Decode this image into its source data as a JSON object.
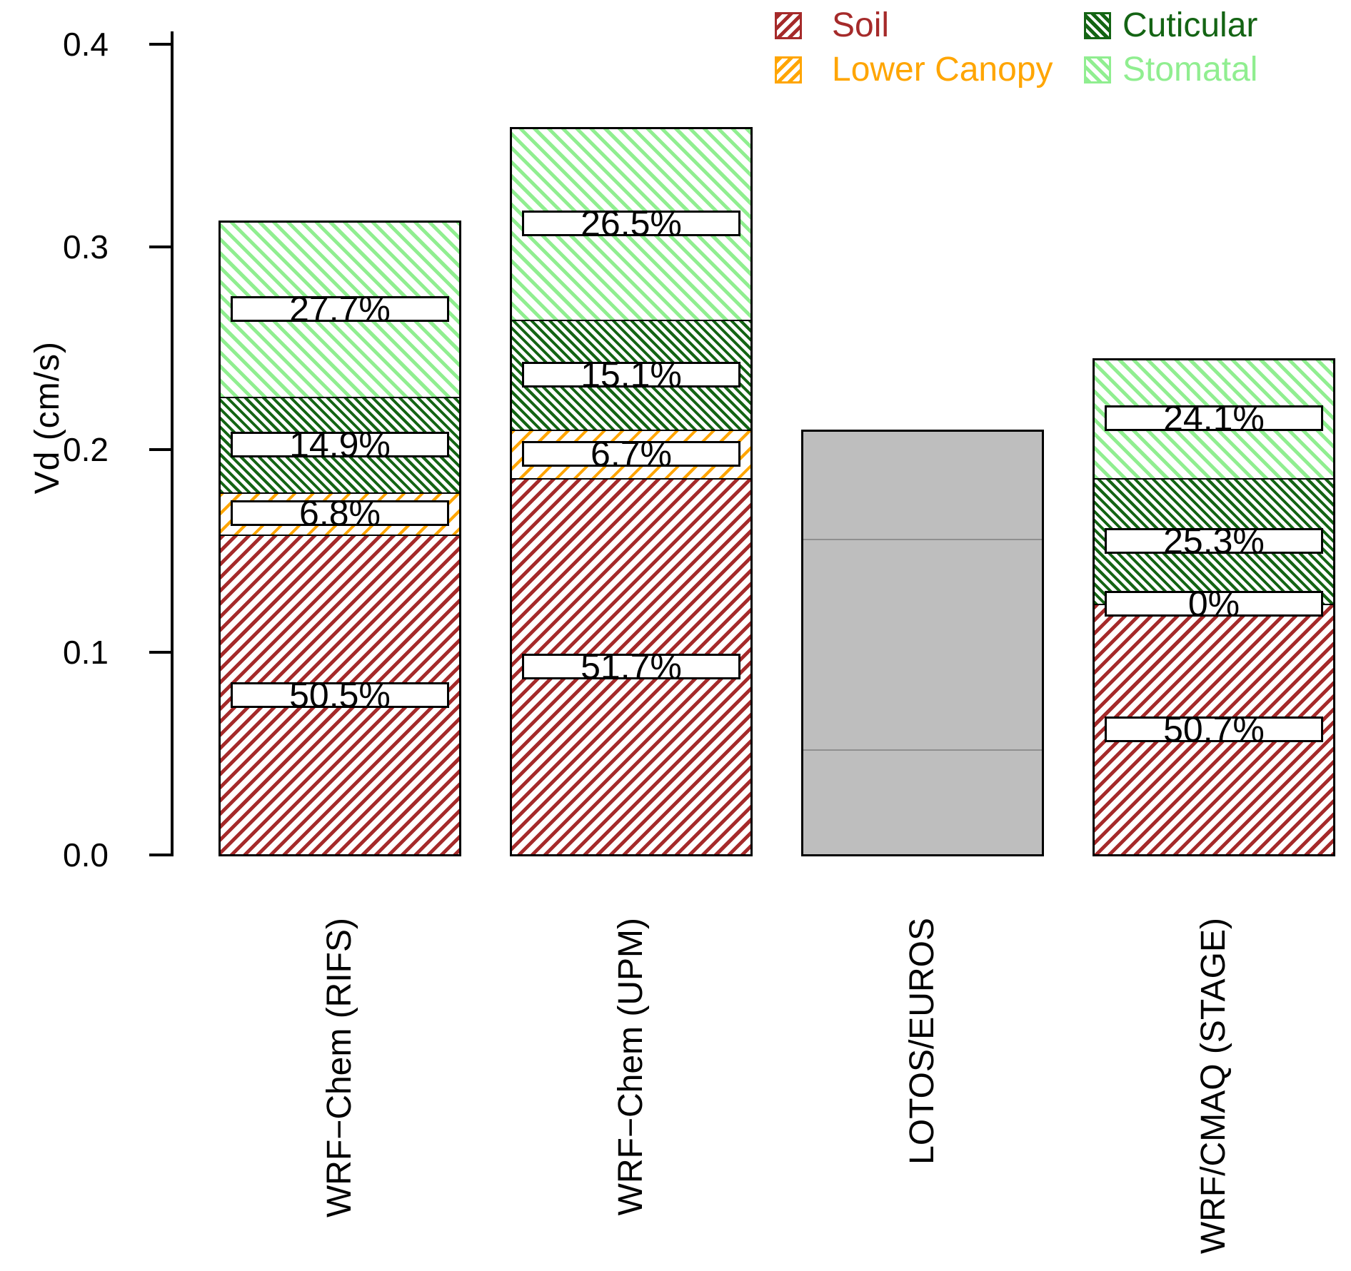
{
  "y_axis": {
    "label": "Vd (cm/s)",
    "tick_labels": [
      "0.0",
      "0.1",
      "0.2",
      "0.3",
      "0.4"
    ]
  },
  "legend": {
    "items": [
      {
        "label": "Soil",
        "color": "#A52A2A",
        "hatch": "/"
      },
      {
        "label": "Lower Canopy",
        "color": "#FFA500",
        "hatch": "/"
      },
      {
        "label": "Cuticular",
        "color": "#146414",
        "hatch": "\\"
      },
      {
        "label": "Stomatal",
        "color": "#90EE90",
        "hatch": "\\"
      }
    ]
  },
  "other_colors": {
    "unpartitioned_fill": "#BEBEBE",
    "unpartitioned_divider": "#8F8F8F",
    "axis": "#000000",
    "label_box_bg": "#FFFFFF"
  },
  "chart_data": {
    "type": "bar",
    "stacked": true,
    "title": "",
    "xlabel": "",
    "ylabel": "Vd (cm/s)",
    "ylim": [
      0,
      0.4
    ],
    "yticks": [
      0,
      0.1,
      0.2,
      0.3,
      0.4
    ],
    "grid": false,
    "legend_position": "top-right",
    "categories": [
      "WRF-Chem (RIFS)",
      "WRF-Chem (UPM)",
      "LOTOS/EUROS",
      "WRF/CMAQ (STAGE)"
    ],
    "series": [
      {
        "name": "Soil",
        "values": [
          0.158,
          0.186,
          null,
          0.124
        ],
        "percent_labels": [
          "50.5%",
          "51.7%",
          null,
          "50.7%"
        ]
      },
      {
        "name": "Lower Canopy",
        "values": [
          0.021,
          0.024,
          null,
          0.0
        ],
        "percent_labels": [
          "6.8%",
          "6.7%",
          null,
          "0%"
        ]
      },
      {
        "name": "Cuticular",
        "values": [
          0.047,
          0.054,
          null,
          0.062
        ],
        "percent_labels": [
          "14.9%",
          "15.1%",
          null,
          "25.3%"
        ]
      },
      {
        "name": "Stomatal",
        "values": [
          0.087,
          0.095,
          null,
          0.059
        ],
        "percent_labels": [
          "27.7%",
          "26.5%",
          null,
          "24.1%"
        ]
      }
    ],
    "bar_totals": [
      0.313,
      0.359,
      0.21,
      0.245
    ],
    "unpartitioned_bar": {
      "category": "LOTOS/EUROS",
      "total": 0.21,
      "divider_values": [
        0.052,
        0.156
      ]
    }
  }
}
